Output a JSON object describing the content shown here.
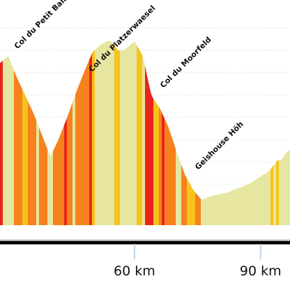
{
  "chart_data": {
    "type": "area",
    "xlabel": "",
    "ylabel": "",
    "x_unit": "km",
    "xlim": [
      28,
      97
    ],
    "ylim": [
      200,
      1450
    ],
    "grid": true,
    "x_ticks": [
      {
        "value": 60,
        "label": "60 km"
      },
      {
        "value": 90,
        "label": "90 km"
      }
    ],
    "profile": {
      "x": [
        28,
        30,
        32,
        34,
        36,
        38,
        40,
        42,
        44,
        46,
        48,
        50,
        52,
        54,
        55,
        56,
        57,
        58,
        60,
        62,
        63,
        64,
        66,
        68,
        70,
        72,
        74,
        76,
        78,
        80,
        82,
        84,
        86,
        88,
        90,
        92,
        94,
        95,
        96,
        97
      ],
      "y": [
        1100,
        1140,
        1020,
        920,
        820,
        700,
        580,
        680,
        800,
        930,
        1050,
        1160,
        1205,
        1225,
        1210,
        1170,
        1170,
        1180,
        1220,
        1140,
        1030,
        920,
        850,
        750,
        610,
        480,
        395,
        340,
        360,
        370,
        380,
        400,
        415,
        440,
        470,
        500,
        560,
        560,
        600,
        620
      ]
    },
    "passes": [
      {
        "name": "Col du Petit Ballon",
        "x": 29.5
      },
      {
        "name": "Col du Platzerwaesel",
        "x": 47.2
      },
      {
        "name": "Col du Moorfeld",
        "x": 64.2
      },
      {
        "name": "Geishouse Höh",
        "x": 72.5
      }
    ],
    "gradient_colors": {
      "flat": "#e6e6a0",
      "moderate": "#f7c21b",
      "steep": "#f6811d",
      "very_steep": "#e8261c"
    }
  }
}
